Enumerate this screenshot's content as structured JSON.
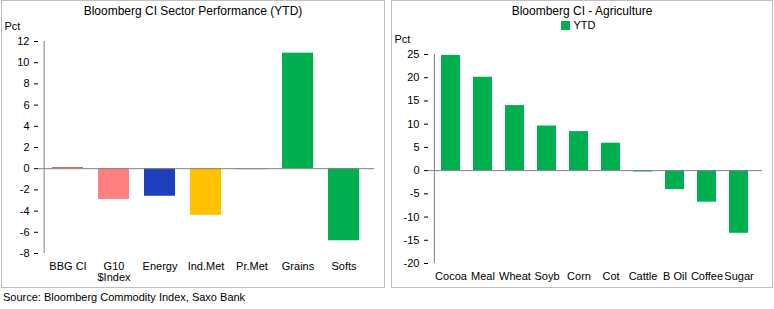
{
  "source": "Source: Bloomberg Commodity Index, Saxo Bank",
  "chart_data": [
    {
      "type": "bar",
      "title": "Bloomberg CI Sector Performance (YTD)",
      "y_label": "Pct",
      "categories": [
        "BBG CI",
        "G10\n$Index",
        "Energy",
        "Ind.Met",
        "Pr.Met",
        "Grains",
        "Softs"
      ],
      "values": [
        0.1,
        -2.9,
        -2.6,
        -4.4,
        -0.1,
        10.9,
        -6.8
      ],
      "colors": [
        "#c0504d",
        "#ff8080",
        "#1f3fbf",
        "#ffc000",
        "#bfb58f",
        "#00b050",
        "#00b050"
      ],
      "ylim": [
        -8,
        12
      ],
      "yticks": [
        -8,
        -6,
        -4,
        -2,
        0,
        2,
        4,
        6,
        8,
        10,
        12
      ],
      "grid": false
    },
    {
      "type": "bar",
      "title": "Bloomberg CI - Agriculture",
      "y_label": "Pct",
      "categories": [
        "Cocoa",
        "Meal",
        "Wheat",
        "Soyb",
        "Corn",
        "Cot",
        "Cattle",
        "B Oil",
        "Coffee",
        "Sugar"
      ],
      "series": [
        {
          "name": "YTD",
          "color": "#00b050",
          "values": [
            24.8,
            20.1,
            14.0,
            9.6,
            8.4,
            5.9,
            -0.3,
            -4.1,
            -6.8,
            -13.5
          ]
        }
      ],
      "ylim": [
        -20,
        25
      ],
      "yticks": [
        -20,
        -15,
        -10,
        -5,
        0,
        5,
        10,
        15,
        20,
        25
      ],
      "grid": false,
      "legend": "top"
    }
  ]
}
